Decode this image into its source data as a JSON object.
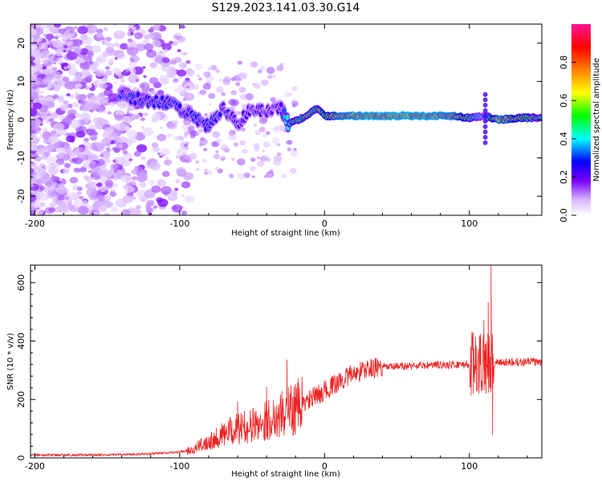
{
  "title": "S129.2023.141.03.30.G14",
  "chart_data": [
    {
      "type": "heatmap",
      "xlabel": "Height of straight line (km)",
      "ylabel": "Frequency (Hz)",
      "xlim": [
        -203,
        150
      ],
      "ylim": [
        -25,
        25
      ],
      "xticks": [
        -200,
        -100,
        0,
        100
      ],
      "yticks": [
        -20,
        -10,
        0,
        10,
        20
      ],
      "colorbar": {
        "label": "Normalized spectral amplitude",
        "range": [
          0,
          1
        ],
        "ticks": [
          "0.0",
          "0.2",
          "0.4",
          "0.6",
          "0.8"
        ],
        "colormap": [
          "#ffffff",
          "#d9b8ff",
          "#7a00ff",
          "#0000ff",
          "#00ffff",
          "#00ff00",
          "#ffff00",
          "#ff8000",
          "#ff0000",
          "#ff1493"
        ]
      },
      "ridge": [
        {
          "x": -140,
          "y": 6.5,
          "amp": 0.35
        },
        {
          "x": -130,
          "y": 5.5,
          "amp": 0.35
        },
        {
          "x": -120,
          "y": 4.5,
          "amp": 0.35
        },
        {
          "x": -110,
          "y": 4.5,
          "amp": 0.35
        },
        {
          "x": -100,
          "y": 3.0,
          "amp": 0.35
        },
        {
          "x": -90,
          "y": 1.0,
          "amp": 0.35
        },
        {
          "x": -80,
          "y": -2.0,
          "amp": 0.35
        },
        {
          "x": -70,
          "y": 3.0,
          "amp": 0.3
        },
        {
          "x": -60,
          "y": -1.0,
          "amp": 0.3
        },
        {
          "x": -50,
          "y": 3.0,
          "amp": 0.3
        },
        {
          "x": -40,
          "y": 2.0,
          "amp": 0.3
        },
        {
          "x": -30,
          "y": 3.0,
          "amp": 0.3
        },
        {
          "x": -25,
          "y": -1.0,
          "amp": 0.55
        },
        {
          "x": -15,
          "y": 0.5,
          "amp": 0.6
        },
        {
          "x": -5,
          "y": 3.0,
          "amp": 0.6
        },
        {
          "x": 0,
          "y": 1.0,
          "amp": 0.7
        },
        {
          "x": 10,
          "y": 1.0,
          "amp": 0.85
        },
        {
          "x": 30,
          "y": 1.0,
          "amp": 0.9
        },
        {
          "x": 50,
          "y": 1.0,
          "amp": 0.9
        },
        {
          "x": 70,
          "y": 1.0,
          "amp": 0.9
        },
        {
          "x": 90,
          "y": 1.0,
          "amp": 0.85
        },
        {
          "x": 100,
          "y": 0.5,
          "amp": 0.6
        },
        {
          "x": 110,
          "y": 1.0,
          "amp": 0.4
        },
        {
          "x": 120,
          "y": 0.0,
          "amp": 0.85
        },
        {
          "x": 135,
          "y": 0.5,
          "amp": 0.7
        },
        {
          "x": 150,
          "y": 0.5,
          "amp": 0.5
        }
      ]
    },
    {
      "type": "line",
      "xlabel": "Height of straight line (km)",
      "ylabel": "SNR (10 * v/v)",
      "xlim": [
        -203,
        150
      ],
      "ylim": [
        0,
        660
      ],
      "xticks": [
        -200,
        -100,
        0,
        100
      ],
      "yticks": [
        0,
        200,
        400,
        600
      ],
      "color": "#ee2222",
      "envelope": [
        {
          "x": -203,
          "y": 10
        },
        {
          "x": -150,
          "y": 10
        },
        {
          "x": -120,
          "y": 14
        },
        {
          "x": -100,
          "y": 20
        },
        {
          "x": -90,
          "y": 30
        },
        {
          "x": -80,
          "y": 60
        },
        {
          "x": -70,
          "y": 80
        },
        {
          "x": -60,
          "y": 100
        },
        {
          "x": -50,
          "y": 110
        },
        {
          "x": -40,
          "y": 130
        },
        {
          "x": -30,
          "y": 150
        },
        {
          "x": -20,
          "y": 170
        },
        {
          "x": -10,
          "y": 200
        },
        {
          "x": 0,
          "y": 230
        },
        {
          "x": 10,
          "y": 260
        },
        {
          "x": 20,
          "y": 290
        },
        {
          "x": 30,
          "y": 305
        },
        {
          "x": 40,
          "y": 310
        },
        {
          "x": 60,
          "y": 315
        },
        {
          "x": 80,
          "y": 318
        },
        {
          "x": 100,
          "y": 320
        },
        {
          "x": 120,
          "y": 325
        },
        {
          "x": 150,
          "y": 330
        }
      ],
      "spikes": [
        {
          "x": -60,
          "y": 190
        },
        {
          "x": -40,
          "y": 240
        },
        {
          "x": -26,
          "y": 335
        },
        {
          "x": -20,
          "y": 250
        },
        {
          "x": 103,
          "y": 360
        },
        {
          "x": 107,
          "y": 410
        },
        {
          "x": 110,
          "y": 470
        },
        {
          "x": 113,
          "y": 530
        },
        {
          "x": 115,
          "y": 660
        },
        {
          "x": 116,
          "y": 80
        }
      ]
    }
  ]
}
